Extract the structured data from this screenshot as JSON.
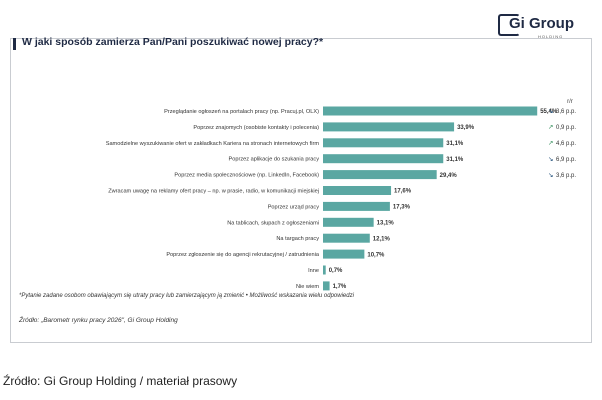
{
  "logo": {
    "text": "Gi Group",
    "sub": "HOLDING"
  },
  "chart_data": {
    "type": "bar",
    "orientation": "horizontal",
    "title": "W jaki sposób zamierza Pan/Pani poszukiwać nowej pracy?*",
    "change_header": "r/r",
    "categories": [
      "Przeglądanie ogłoszeń na portalach pracy (np. Pracuj.pl, OLX)",
      "Poprzez znajomych (osobiste kontakty i polecenia)",
      "Samodzielne wyszukiwanie ofert w zakładkach Kariera na stronach internetowych firm",
      "Poprzez aplikacje do szukania pracy",
      "Poprzez media społecznościowe (np. LinkedIn, Facebook)",
      "Zwracam uwagę na reklamy ofert pracy – np. w prasie, radio, w komunikacji miejskiej",
      "Poprzez urząd pracy",
      "Na tablicach, słupach z ogłoszeniami",
      "Na targach pracy",
      "Poprzez zgłoszenie się do agencji rekrutacyjnej / zatrudnienia",
      "Inne",
      "Nie wiem"
    ],
    "values": [
      55.4,
      33.9,
      31.1,
      31.1,
      29.4,
      17.6,
      17.3,
      13.1,
      12.1,
      10.7,
      0.7,
      1.7
    ],
    "value_labels": [
      "55,4%",
      "33,9%",
      "31,1%",
      "31,1%",
      "29,4%",
      "17,6%",
      "17,3%",
      "13,1%",
      "12,1%",
      "10,7%",
      "0,7%",
      "1,7%"
    ],
    "changes": [
      {
        "arrow": "↘",
        "text": "3,6 p.p."
      },
      {
        "arrow": "↗",
        "text": "0,9 p.p."
      },
      {
        "arrow": "↗",
        "text": "4,6 p.p."
      },
      {
        "arrow": "↘",
        "text": "6,9 p.p."
      },
      {
        "arrow": "↘",
        "text": "3,6 p.p."
      }
    ],
    "xlim": [
      0,
      60
    ],
    "bar_color": "#5aa7a2",
    "grid": false
  },
  "footnote": "*Pytanie zadane osobom obawiającym się utraty pracy lub zamierzającym ją zmienić  •  Możliwość wskazania wielu odpowiedzi",
  "source_inner": "Źródło: „Barometr rynku pracy 2026\", Gi Group Holding",
  "caption": "Źródło: Gi Group Holding / materiał prasowy"
}
